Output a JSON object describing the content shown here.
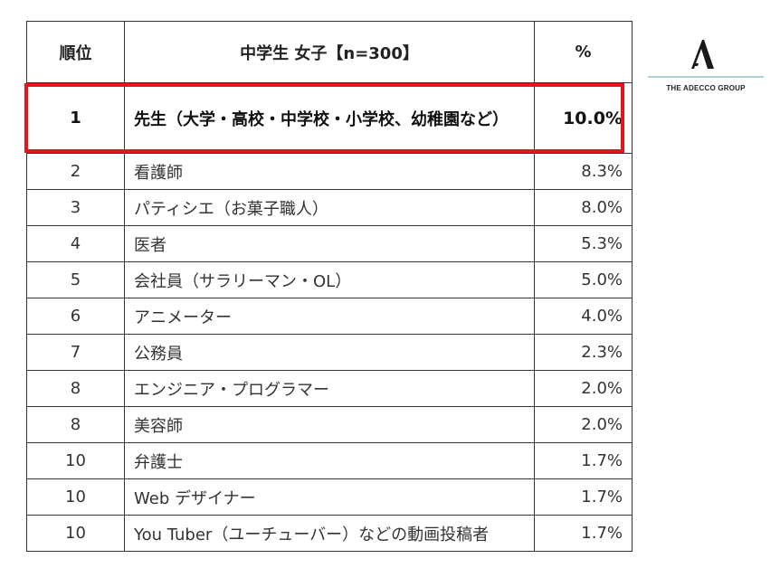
{
  "table": {
    "headers": {
      "rank": "順位",
      "job": "中学生 女子【n=300】",
      "pct": "%"
    },
    "rows": [
      {
        "rank": "1",
        "job": "先生（大学・高校・中学校・小学校、幼稚園など）",
        "pct": "10.0%"
      },
      {
        "rank": "2",
        "job": "看護師",
        "pct": "8.3%"
      },
      {
        "rank": "3",
        "job": "パティシエ（お菓子職人）",
        "pct": "8.0%"
      },
      {
        "rank": "4",
        "job": "医者",
        "pct": "5.3%"
      },
      {
        "rank": "5",
        "job": "会社員（サラリーマン・OL）",
        "pct": "5.0%"
      },
      {
        "rank": "6",
        "job": "アニメーター",
        "pct": "4.0%"
      },
      {
        "rank": "7",
        "job": "公務員",
        "pct": "2.3%"
      },
      {
        "rank": "8",
        "job": "エンジニア・プログラマー",
        "pct": "2.0%"
      },
      {
        "rank": "8",
        "job": "美容師",
        "pct": "2.0%"
      },
      {
        "rank": "10",
        "job": "弁護士",
        "pct": "1.7%"
      },
      {
        "rank": "10",
        "job": "Web デザイナー",
        "pct": "1.7%"
      },
      {
        "rank": "10",
        "job": "You Tuber（ユーチューバー）などの動画投稿者",
        "pct": "1.7%"
      }
    ]
  },
  "logo": {
    "text": "THE ADECCO GROUP",
    "icon": "adecco-a-icon"
  },
  "colors": {
    "highlight": "#e8141a",
    "border": "#333333",
    "logo_line": "#7fb8c0"
  }
}
